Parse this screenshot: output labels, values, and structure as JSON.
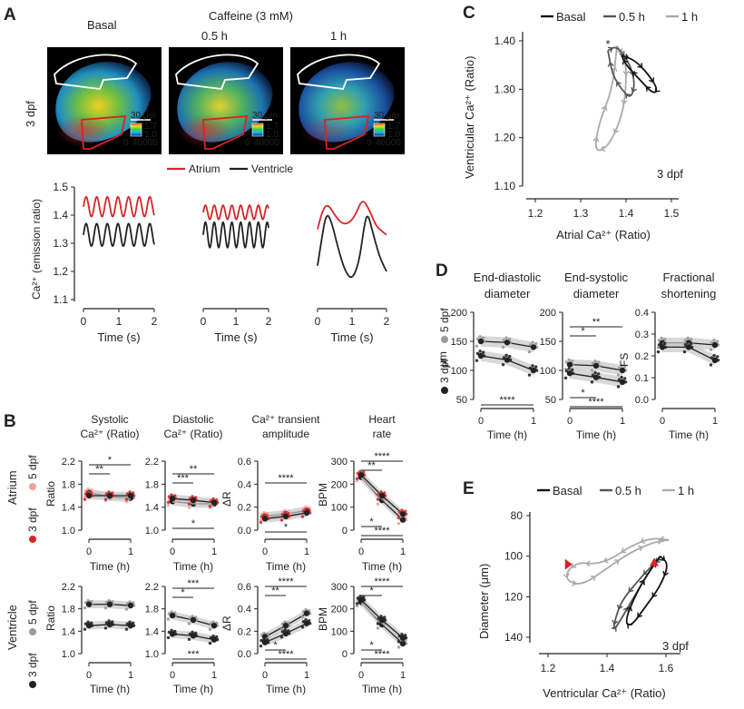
{
  "panel_letters": {
    "a": "A",
    "b": "B",
    "c": "C",
    "d": "D",
    "e": "E"
  },
  "panelA": {
    "basal_label": "Basal",
    "caffeine_label": "Caffeine (3 mM)",
    "t05_label": "0.5 h",
    "t1_label": "1 h",
    "age_label": "3 dpf",
    "scalebar": "30 μm",
    "colorbar_top": "1.7",
    "colorbar_mid": "1.0",
    "colorbar_x0": "0",
    "colorbar_x1": "40000",
    "legend_atrium": "Atrium",
    "legend_ventricle": "Ventricle",
    "ylabel": "Ca²⁺ (emission ratio)",
    "xlabel": "Time (s)",
    "yticks": [
      "1.1",
      "1.2",
      "1.3",
      "1.4",
      "1.5"
    ],
    "xticks": [
      "0",
      "1",
      "2"
    ]
  },
  "panelB": {
    "col_titles": [
      [
        "Systolic",
        "Ca²⁺ (Ratio)"
      ],
      [
        "Diastolic",
        "Ca²⁺ (Ratio)"
      ],
      [
        "Ca²⁺ transient",
        "amplitude"
      ],
      [
        "Heart",
        "rate"
      ]
    ],
    "row_atrium": "Atrium",
    "row_ventricle": "Ventricle",
    "legend_3dpf": "3 dpf",
    "legend_5dpf": "5 dpf",
    "ylabel_ratio": "Ratio",
    "ylabel_dr": "ΔR",
    "ylabel_bpm": "BPM",
    "xlabel": "Time (h)",
    "xticks": [
      "0",
      "1"
    ],
    "yticks_ratio": [
      "1.0",
      "1.4",
      "1.8",
      "2.2"
    ],
    "yticks_ratio_vent": [
      "1.0",
      "1.4",
      "1.8",
      "2.2"
    ],
    "yticks_dr": [
      "0.0",
      "0.2",
      "0.4",
      "0.6"
    ],
    "yticks_bpm": [
      "0",
      "100",
      "200",
      "300"
    ],
    "sig": {
      "star1": "*",
      "star2": "**",
      "star3": "***",
      "star4": "****"
    }
  },
  "panelC": {
    "legend": [
      "Basal",
      "0.5 h",
      "1 h"
    ],
    "ylabel": "Ventricular Ca²⁺ (Ratio)",
    "xlabel": "Atrial Ca²⁺ (Ratio)",
    "xticks": [
      "1.2",
      "1.3",
      "1.4",
      "1.5"
    ],
    "yticks": [
      "1.10",
      "1.20",
      "1.30",
      "1.40"
    ],
    "age": "3 dpf",
    "star": "*"
  },
  "panelD": {
    "titles": [
      [
        "End-diastolic",
        "diameter"
      ],
      [
        "End-systolic",
        "diameter"
      ],
      [
        "Fractional",
        "shortening"
      ]
    ],
    "legend_3dpf": "3 dpf",
    "legend_5dpf": "5 dpf",
    "ylabel_um": "μm",
    "ylabel_fs": "FS",
    "xlabel": "Time (h)",
    "xticks": [
      "0",
      "1"
    ],
    "yticks_um": [
      "50",
      "100",
      "150",
      "200"
    ],
    "yticks_fs": [
      "0.0",
      "0.1",
      "0.2",
      "0.3",
      "0.4"
    ]
  },
  "panelE": {
    "legend": [
      "Basal",
      "0.5 h",
      "1 h"
    ],
    "ylabel": "Diameter (μm)",
    "xlabel": "Ventricular Ca²⁺ (Ratio)",
    "xticks": [
      "1.2",
      "1.4",
      "1.6"
    ],
    "yticks": [
      "80",
      "100",
      "120",
      "140"
    ],
    "age": "3 dpf"
  },
  "colors": {
    "atrium": "#d62728",
    "ventricle": "#222222",
    "basal": "#111111",
    "h05": "#555555",
    "h1": "#aaaaaa",
    "atrium5": "#f2a0a0",
    "ventricle5": "#9a9a9a",
    "band": "#c8c8c8",
    "roi_white": "#ffffff",
    "roi_red": "#e02020"
  },
  "chart_data": [
    {
      "type": "line",
      "panel": "A",
      "ylabel": "Ca²⁺ (emission ratio)",
      "xlabel": "Time (s)",
      "ylim": [
        1.1,
        1.5
      ],
      "xlim": [
        0,
        2
      ],
      "series": [
        {
          "name": "Atrium",
          "condition": "Basal",
          "mean": 1.43,
          "amp": 0.035,
          "period": 0.3
        },
        {
          "name": "Ventricle",
          "condition": "Basal",
          "mean": 1.33,
          "amp": 0.04,
          "period": 0.3
        },
        {
          "name": "Atrium",
          "condition": "0.5 h",
          "mean": 1.41,
          "amp": 0.025,
          "period": 0.27
        },
        {
          "name": "Ventricle",
          "condition": "0.5 h",
          "mean": 1.33,
          "amp": 0.045,
          "period": 0.27
        },
        {
          "name": "Atrium",
          "condition": "1 h",
          "x": [
            0,
            0.15,
            0.3,
            0.5,
            0.7,
            0.9,
            1.1,
            1.3,
            1.5,
            1.7,
            1.9,
            2.0
          ],
          "y": [
            1.35,
            1.42,
            1.44,
            1.4,
            1.37,
            1.37,
            1.4,
            1.46,
            1.42,
            1.36,
            1.34,
            1.33
          ]
        },
        {
          "name": "Ventricle",
          "condition": "1 h",
          "x": [
            0,
            0.1,
            0.25,
            0.4,
            0.6,
            0.8,
            1.0,
            1.2,
            1.35,
            1.45,
            1.6,
            1.8,
            2.0
          ],
          "y": [
            1.22,
            1.3,
            1.41,
            1.38,
            1.28,
            1.2,
            1.17,
            1.23,
            1.36,
            1.41,
            1.34,
            1.25,
            1.2
          ]
        }
      ]
    },
    {
      "type": "scatter",
      "panel": "B",
      "x": [
        0,
        0.5,
        1
      ],
      "series": [
        {
          "name": "Atrium systolic 3 dpf",
          "values": [
            1.6,
            1.6,
            1.6
          ]
        },
        {
          "name": "Atrium systolic 5 dpf",
          "values": [
            1.65,
            1.58,
            1.56
          ]
        },
        {
          "name": "Atrium diastolic 3 dpf",
          "values": [
            1.55,
            1.52,
            1.48
          ]
        },
        {
          "name": "Atrium diastolic 5 dpf",
          "values": [
            1.5,
            1.46,
            1.46
          ]
        },
        {
          "name": "Atrium amplitude 3 dpf",
          "values": [
            0.1,
            0.12,
            0.15
          ]
        },
        {
          "name": "Atrium amplitude 5 dpf",
          "values": [
            0.12,
            0.14,
            0.17
          ]
        },
        {
          "name": "Atrium heart rate 3 dpf",
          "values": [
            240,
            150,
            70
          ]
        },
        {
          "name": "Atrium heart rate 5 dpf",
          "values": [
            230,
            130,
            45
          ]
        },
        {
          "name": "Ventricle systolic 3 dpf",
          "values": [
            1.5,
            1.52,
            1.5
          ]
        },
        {
          "name": "Ventricle systolic 5 dpf",
          "values": [
            1.88,
            1.88,
            1.86
          ]
        },
        {
          "name": "Ventricle diastolic 3 dpf",
          "values": [
            1.35,
            1.32,
            1.25
          ]
        },
        {
          "name": "Ventricle diastolic 5 dpf",
          "values": [
            1.68,
            1.6,
            1.5
          ]
        },
        {
          "name": "Ventricle amplitude 3 dpf",
          "values": [
            0.1,
            0.18,
            0.27
          ]
        },
        {
          "name": "Ventricle amplitude 5 dpf",
          "values": [
            0.15,
            0.25,
            0.36
          ]
        },
        {
          "name": "Ventricle heart rate 3 dpf",
          "values": [
            240,
            150,
            70
          ]
        },
        {
          "name": "Ventricle heart rate 5 dpf",
          "values": [
            230,
            130,
            45
          ]
        }
      ]
    },
    {
      "type": "line",
      "panel": "C",
      "xlabel": "Atrial Ca²⁺ (Ratio)",
      "ylabel": "Ventricular Ca²⁺ (Ratio)",
      "xlim": [
        1.2,
        1.5
      ],
      "ylim": [
        1.1,
        1.4
      ],
      "series": [
        {
          "name": "Basal",
          "x": [
            1.39,
            1.42,
            1.45,
            1.47,
            1.46,
            1.43,
            1.4,
            1.39
          ],
          "y": [
            1.37,
            1.36,
            1.33,
            1.3,
            1.29,
            1.32,
            1.35,
            1.37
          ]
        },
        {
          "name": "0.5 h",
          "x": [
            1.36,
            1.38,
            1.41,
            1.42,
            1.41,
            1.39,
            1.37,
            1.36
          ],
          "y": [
            1.38,
            1.39,
            1.35,
            1.31,
            1.28,
            1.3,
            1.33,
            1.38
          ]
        },
        {
          "name": "1 h",
          "x": [
            1.38,
            1.4,
            1.4,
            1.39,
            1.36,
            1.33,
            1.34,
            1.37,
            1.38
          ],
          "y": [
            1.39,
            1.36,
            1.3,
            1.24,
            1.18,
            1.17,
            1.23,
            1.3,
            1.39
          ]
        }
      ]
    },
    {
      "type": "scatter",
      "panel": "D",
      "x": [
        0,
        0.5,
        1
      ],
      "series": [
        {
          "name": "End-diastolic 3 dpf",
          "values": [
            125,
            118,
            100
          ]
        },
        {
          "name": "End-diastolic 5 dpf",
          "values": [
            150,
            148,
            140
          ]
        },
        {
          "name": "End-systolic 3 dpf",
          "values": [
            95,
            88,
            80
          ]
        },
        {
          "name": "End-systolic 5 dpf",
          "values": [
            110,
            108,
            100
          ]
        },
        {
          "name": "Fractional shortening 3 dpf",
          "values": [
            0.24,
            0.24,
            0.18
          ]
        },
        {
          "name": "Fractional shortening 5 dpf",
          "values": [
            0.26,
            0.26,
            0.25
          ]
        }
      ]
    },
    {
      "type": "line",
      "panel": "E",
      "xlabel": "Ventricular Ca²⁺ (Ratio)",
      "ylabel": "Diameter (μm)",
      "xlim": [
        1.2,
        1.7
      ],
      "ylim": [
        80,
        140
      ],
      "series": [
        {
          "name": "Basal",
          "x": [
            1.58,
            1.61,
            1.58,
            1.53,
            1.48,
            1.46,
            1.5,
            1.55,
            1.58
          ],
          "y": [
            100,
            104,
            115,
            125,
            135,
            132,
            118,
            106,
            100
          ]
        },
        {
          "name": "0.5 h",
          "x": [
            1.58,
            1.55,
            1.5,
            1.45,
            1.43,
            1.42,
            1.44,
            1.5,
            1.55,
            1.58
          ],
          "y": [
            101,
            105,
            113,
            122,
            130,
            137,
            133,
            118,
            106,
            101
          ]
        },
        {
          "name": "1 h",
          "x": [
            1.61,
            1.55,
            1.48,
            1.42,
            1.36,
            1.3,
            1.26,
            1.27,
            1.32,
            1.4,
            1.48,
            1.56,
            1.61
          ],
          "y": [
            92,
            91,
            95,
            101,
            104,
            103,
            108,
            113,
            114,
            106,
            98,
            93,
            92
          ]
        }
      ]
    }
  ]
}
